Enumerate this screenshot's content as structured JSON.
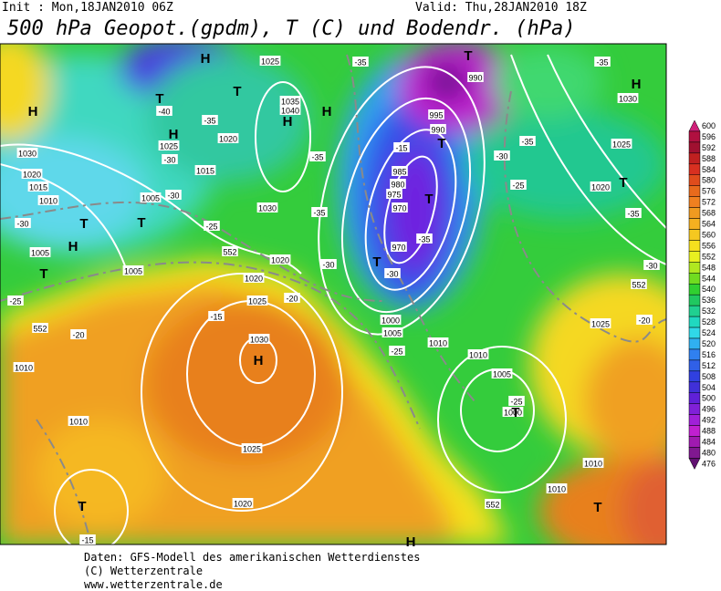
{
  "header": {
    "init": "Init : Mon,18JAN2010 06Z",
    "valid": "Valid: Thu,28JAN2010 18Z",
    "title": "500 hPa Geopot.(gpdm), T (C) und Bodendr. (hPa)"
  },
  "map_labels": [
    "1025",
    "1035",
    "1040",
    "1020",
    "1025",
    "1030",
    "1020",
    "1015",
    "1010",
    "1005",
    "1015",
    "1030",
    "1020",
    "1005",
    "1005",
    "1020",
    "1025",
    "1030",
    "1025",
    "1020",
    "1010",
    "1010",
    "1010",
    "1010",
    "1005",
    "1000",
    "1010",
    "1010",
    "1025",
    "1020",
    "1025",
    "1030",
    "990",
    "995",
    "990",
    "985",
    "980",
    "975",
    "970",
    "970",
    "1000",
    "1005",
    "-35",
    "-40",
    "-35",
    "-30",
    "-30",
    "-35",
    "-25",
    "-35",
    "-30",
    "-20",
    "-30",
    "-25",
    "-20",
    "-15",
    "-15",
    "-25",
    "-25",
    "-20",
    "-30",
    "-35",
    "-25",
    "-30",
    "-35",
    "-35",
    "-15",
    "-35",
    "-30",
    "552",
    "552",
    "552",
    "552",
    "H",
    "T",
    "T",
    "H",
    "H",
    "H",
    "H",
    "T",
    "T",
    "H",
    "T",
    "H",
    "T",
    "T",
    "T",
    "T",
    "T",
    "H",
    "T",
    "T",
    "T",
    "H"
  ],
  "colorbar": {
    "ticks": [
      600,
      596,
      592,
      588,
      584,
      580,
      576,
      572,
      568,
      564,
      560,
      556,
      552,
      548,
      544,
      540,
      536,
      532,
      528,
      524,
      520,
      516,
      512,
      508,
      504,
      500,
      496,
      492,
      488,
      484,
      480,
      476
    ],
    "colors": [
      "#d0207a",
      "#b01040",
      "#a01030",
      "#c02020",
      "#d83020",
      "#e04c1c",
      "#e86a1c",
      "#f08020",
      "#f09a20",
      "#f5b020",
      "#f5c820",
      "#f5e01e",
      "#e8f020",
      "#b0e820",
      "#70dc20",
      "#30d030",
      "#20c860",
      "#20d090",
      "#20d8c0",
      "#30d8e8",
      "#30b0f0",
      "#3080f0",
      "#3060e8",
      "#3040e0",
      "#4030d8",
      "#6020d8",
      "#8020d8",
      "#a020d8",
      "#c020d0",
      "#a01ab0",
      "#801890",
      "#601070"
    ]
  },
  "footer": [
    "Daten: GFS-Modell des amerikanischen Wetterdienstes",
    "(C) Wetterzentrale",
    "www.wetterzentrale.de"
  ]
}
